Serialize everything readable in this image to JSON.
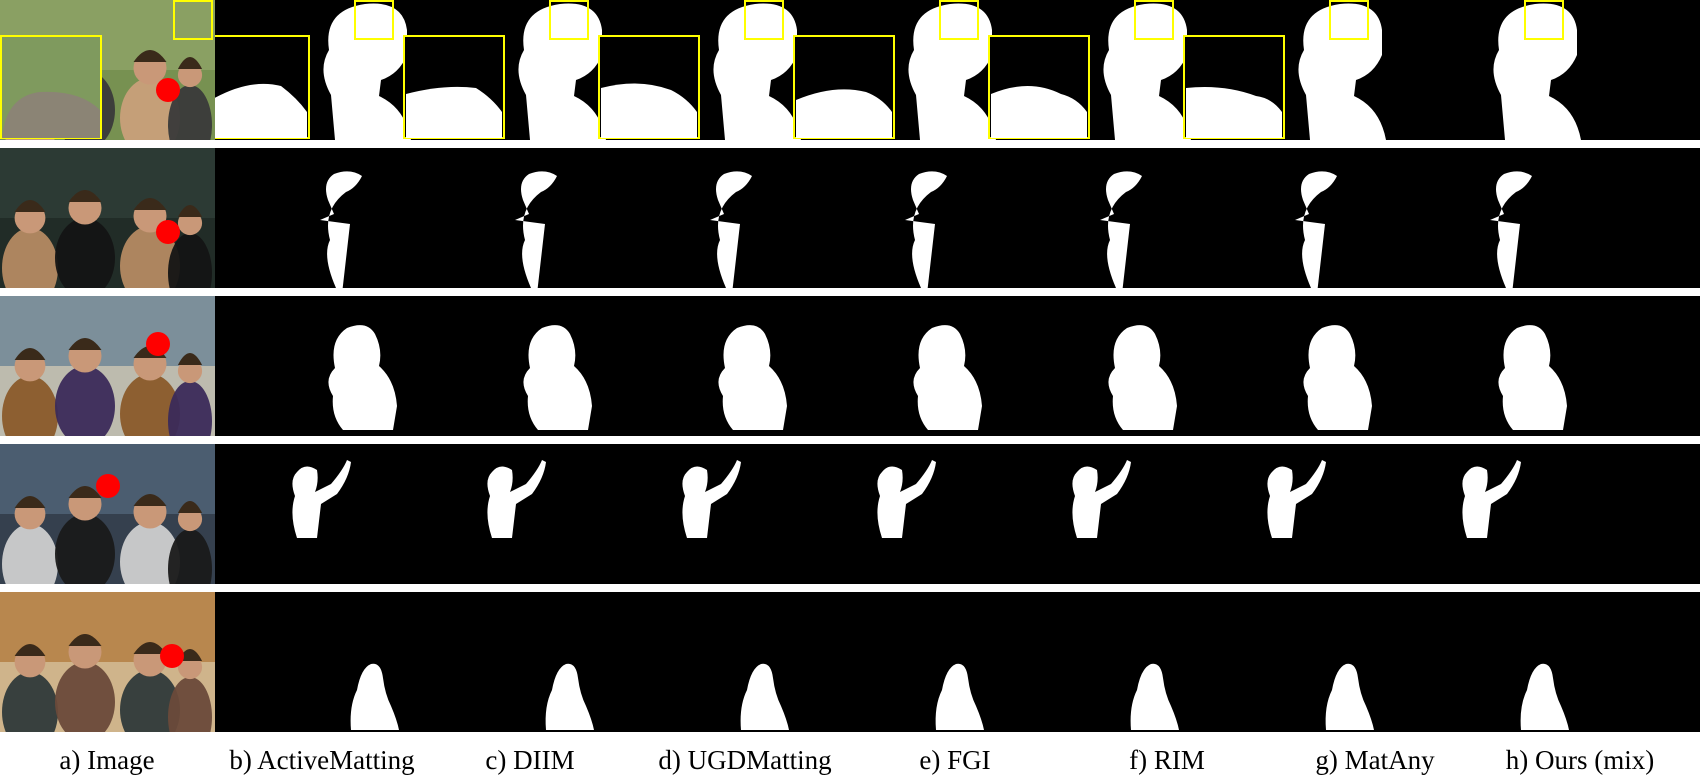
{
  "figure": {
    "columns": [
      {
        "label": "a) Image"
      },
      {
        "label": "b) ActiveMatting"
      },
      {
        "label": "c) DIIM"
      },
      {
        "label": "d) UGDMatting"
      },
      {
        "label": "e) FGI"
      },
      {
        "label": "f) RIM"
      },
      {
        "label": "g) MatAny"
      },
      {
        "label": "h) Ours (mix)"
      }
    ],
    "rows": [
      {
        "scene": "two-boys-whispering",
        "has_zoom_insets": true
      },
      {
        "scene": "men-in-sunglasses"
      },
      {
        "scene": "kids-at-playground"
      },
      {
        "scene": "group-near-hollywood-sign"
      },
      {
        "scene": "group-at-campus"
      }
    ],
    "colors": {
      "click_marker": "#ff0000",
      "inset_border": "#ffff00",
      "mask_foreground": "#ffffff",
      "mask_background": "#000000"
    }
  }
}
